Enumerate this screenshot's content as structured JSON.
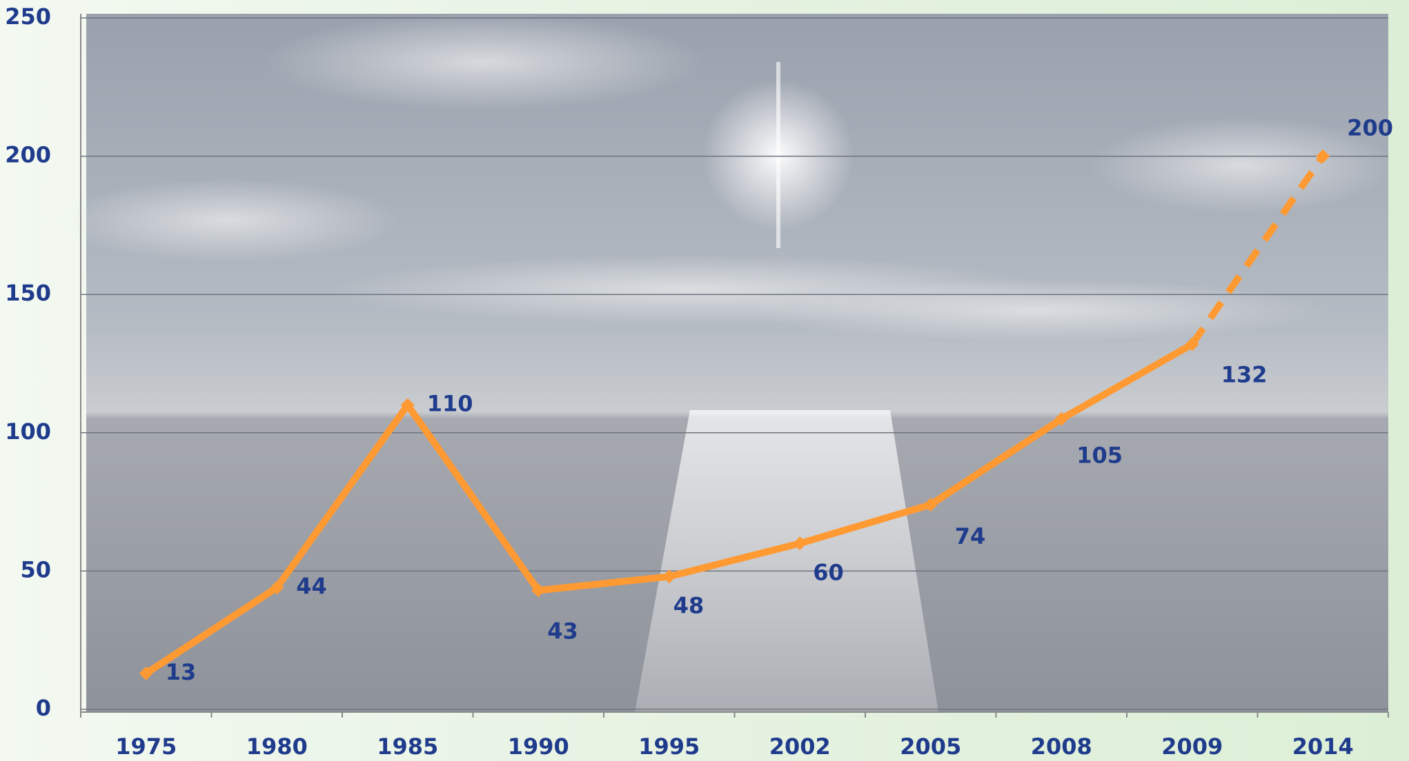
{
  "chart_data": {
    "type": "line",
    "categories": [
      "1975",
      "1980",
      "1985",
      "1990",
      "1995",
      "2002",
      "2005",
      "2008",
      "2009",
      "2014"
    ],
    "series": [
      {
        "color": "#ff9a33",
        "values": [
          13,
          44,
          110,
          43,
          48,
          60,
          74,
          105,
          132,
          200
        ]
      }
    ],
    "ylim": [
      0,
      250
    ],
    "yticks": [
      0,
      50,
      100,
      150,
      200,
      250
    ],
    "grid": true,
    "last_segment_dashed": true
  }
}
